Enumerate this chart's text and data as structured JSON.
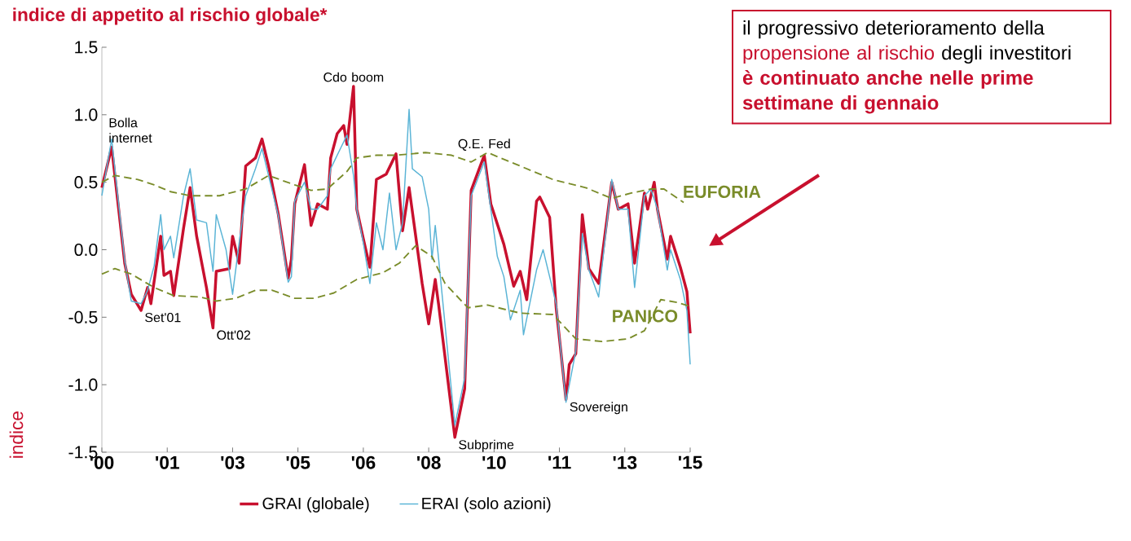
{
  "chart_data": {
    "type": "line",
    "title": "indice di appetito al rischio globale*",
    "ylabel": "indice",
    "legend": "bottom",
    "xlim": [
      "2000-01",
      "2015-01"
    ],
    "ylim": [
      -1.5,
      1.5
    ],
    "xticks": [
      {
        "value": "2000-01",
        "label": "'00"
      },
      {
        "value": "2001-09",
        "label": "'01"
      },
      {
        "value": "2003-05",
        "label": "'03"
      },
      {
        "value": "2005-01",
        "label": "'05"
      },
      {
        "value": "2006-09",
        "label": "'06"
      },
      {
        "value": "2008-05",
        "label": "'08"
      },
      {
        "value": "2010-01",
        "label": "'10"
      },
      {
        "value": "2011-09",
        "label": "'11"
      },
      {
        "value": "2013-05",
        "label": "'13"
      },
      {
        "value": "2015-01",
        "label": "'15"
      }
    ],
    "yticks": [
      -1.5,
      {
        "value": -1,
        "label": "-1.0"
      },
      -0.5,
      {
        "value": 0,
        "label": "0.0"
      },
      0.5,
      {
        "value": 1,
        "label": "1.0"
      },
      1.5
    ],
    "series": [
      {
        "name": "GRAI (globale)",
        "color": "#c8102e",
        "x": [
          "2000-01",
          "2000-04",
          "2000-08",
          "2000-10",
          "2001-01",
          "2001-03",
          "2001-04",
          "2001-07",
          "2001-08",
          "2001-10",
          "2001-11",
          "2002-02",
          "2002-04",
          "2002-06",
          "2002-09",
          "2002-11",
          "2002-12",
          "2003-04",
          "2003-05",
          "2003-07",
          "2003-09",
          "2003-12",
          "2004-02",
          "2004-04",
          "2004-07",
          "2004-10",
          "2004-11",
          "2004-12",
          "2005-03",
          "2005-05",
          "2005-07",
          "2005-10",
          "2005-11",
          "2006-01",
          "2006-03",
          "2006-04",
          "2006-06",
          "2006-07",
          "2006-09",
          "2006-11",
          "2007-01",
          "2007-04",
          "2007-07",
          "2007-09",
          "2007-11",
          "2008-03",
          "2008-05",
          "2008-07",
          "2008-08",
          "2009-01",
          "2009-04",
          "2009-06",
          "2009-10",
          "2009-12",
          "2010-04",
          "2010-07",
          "2010-09",
          "2010-11",
          "2011-02",
          "2011-03",
          "2011-06",
          "2011-08",
          "2011-11",
          "2011-12",
          "2012-02",
          "2012-04",
          "2012-06",
          "2012-09",
          "2013-01",
          "2013-03",
          "2013-06",
          "2013-08",
          "2013-11",
          "2013-12",
          "2014-02",
          "2014-03",
          "2014-06",
          "2014-07",
          "2014-10",
          "2014-12",
          "2015-01"
        ],
        "values": [
          0.46,
          0.76,
          -0.1,
          -0.33,
          -0.45,
          -0.28,
          -0.4,
          0.1,
          -0.19,
          -0.16,
          -0.34,
          0.16,
          0.46,
          0.1,
          -0.28,
          -0.58,
          -0.16,
          -0.14,
          0.1,
          -0.1,
          0.62,
          0.68,
          0.82,
          0.62,
          0.26,
          -0.21,
          -0.07,
          0.34,
          0.63,
          0.18,
          0.34,
          0.3,
          0.68,
          0.86,
          0.92,
          0.78,
          1.21,
          0.3,
          0.08,
          -0.13,
          0.52,
          0.56,
          0.71,
          0.14,
          0.46,
          -0.25,
          -0.55,
          -0.22,
          -0.4,
          -1.39,
          -1.03,
          0.44,
          0.7,
          0.34,
          0.04,
          -0.27,
          -0.16,
          -0.37,
          0.36,
          0.39,
          0.24,
          -0.43,
          -1.11,
          -0.85,
          -0.77,
          0.26,
          -0.14,
          -0.25,
          0.5,
          0.3,
          0.34,
          -0.1,
          0.42,
          0.3,
          0.5,
          0.3,
          -0.07,
          0.1,
          -0.13,
          -0.31,
          -0.62
        ]
      },
      {
        "name": "ERAI (solo azioni)",
        "color": "#5ab4d6",
        "x": [
          "2000-01",
          "2000-04",
          "2000-08",
          "2000-10",
          "2001-01",
          "2001-03",
          "2001-05",
          "2001-07",
          "2001-08",
          "2001-10",
          "2001-11",
          "2002-02",
          "2002-04",
          "2002-06",
          "2002-09",
          "2002-11",
          "2002-12",
          "2003-03",
          "2003-05",
          "2003-07",
          "2003-09",
          "2003-12",
          "2004-02",
          "2004-04",
          "2004-07",
          "2004-10",
          "2004-11",
          "2004-12",
          "2005-03",
          "2005-05",
          "2005-07",
          "2005-10",
          "2005-11",
          "2006-03",
          "2006-04",
          "2006-06",
          "2006-07",
          "2006-09",
          "2006-11",
          "2007-01",
          "2007-03",
          "2007-05",
          "2007-07",
          "2007-09",
          "2007-11",
          "2007-12",
          "2008-03",
          "2008-05",
          "2008-06",
          "2008-07",
          "2008-08",
          "2009-01",
          "2009-04",
          "2009-06",
          "2009-10",
          "2009-12",
          "2010-02",
          "2010-04",
          "2010-06",
          "2010-09",
          "2010-10",
          "2011-02",
          "2011-04",
          "2011-06",
          "2011-08",
          "2011-11",
          "2012-02",
          "2012-04",
          "2012-06",
          "2012-09",
          "2013-01",
          "2013-03",
          "2013-06",
          "2013-08",
          "2013-11",
          "2014-01",
          "2014-03",
          "2014-06",
          "2014-07",
          "2014-10",
          "2014-12",
          "2015-01"
        ],
        "values": [
          0.4,
          0.82,
          -0.08,
          -0.38,
          -0.4,
          -0.3,
          -0.12,
          0.26,
          0.0,
          0.1,
          -0.06,
          0.4,
          0.6,
          0.22,
          0.2,
          -0.16,
          0.26,
          0.0,
          -0.33,
          0.05,
          0.4,
          0.6,
          0.75,
          0.55,
          0.25,
          -0.24,
          -0.2,
          0.36,
          0.5,
          0.3,
          0.3,
          0.4,
          0.6,
          0.8,
          0.85,
          0.55,
          0.3,
          0.05,
          -0.25,
          0.2,
          0.0,
          0.42,
          0.0,
          0.2,
          1.04,
          0.6,
          0.54,
          0.3,
          -0.07,
          0.18,
          -0.06,
          -1.3,
          -0.95,
          0.4,
          0.65,
          0.3,
          -0.05,
          -0.2,
          -0.52,
          -0.3,
          -0.63,
          -0.15,
          0.0,
          -0.2,
          -0.4,
          -1.13,
          -0.75,
          0.12,
          -0.15,
          -0.35,
          0.52,
          0.3,
          0.3,
          -0.28,
          0.4,
          0.45,
          0.3,
          -0.15,
          0.0,
          -0.22,
          -0.45,
          -0.85
        ]
      },
      {
        "name": "EUFORIA",
        "color": "#7a8c2a",
        "line_style": "dashed",
        "x": [
          "2000-01",
          "2000-05",
          "2000-12",
          "2001-05",
          "2001-10",
          "2002-04",
          "2003-01",
          "2003-09",
          "2004-04",
          "2004-12",
          "2005-05",
          "2005-10",
          "2006-04",
          "2006-07",
          "2007-01",
          "2007-07",
          "2008-04",
          "2008-12",
          "2009-06",
          "2009-11",
          "2010-09",
          "2011-07",
          "2012-05",
          "2013-01",
          "2013-07",
          "2014-01",
          "2014-05",
          "2014-11"
        ],
        "values": [
          0.5,
          0.55,
          0.52,
          0.48,
          0.43,
          0.4,
          0.4,
          0.45,
          0.55,
          0.48,
          0.44,
          0.45,
          0.58,
          0.68,
          0.7,
          0.7,
          0.72,
          0.7,
          0.65,
          0.72,
          0.62,
          0.52,
          0.46,
          0.38,
          0.42,
          0.45,
          0.45,
          0.35
        ]
      },
      {
        "name": "PANICO",
        "color": "#7a8c2a",
        "line_style": "dashed",
        "x": [
          "2000-01",
          "2000-05",
          "2000-10",
          "2001-05",
          "2001-11",
          "2002-07",
          "2002-12",
          "2003-06",
          "2003-12",
          "2004-05",
          "2004-12",
          "2005-06",
          "2005-12",
          "2006-07",
          "2007-03",
          "2007-08",
          "2008-01",
          "2008-06",
          "2008-10",
          "2009-05",
          "2009-11",
          "2010-09",
          "2011-07",
          "2012-02",
          "2012-10",
          "2013-06",
          "2013-11",
          "2014-04",
          "2014-09",
          "2015-01"
        ],
        "values": [
          -0.18,
          -0.14,
          -0.18,
          -0.28,
          -0.34,
          -0.35,
          -0.38,
          -0.36,
          -0.3,
          -0.3,
          -0.36,
          -0.36,
          -0.32,
          -0.22,
          -0.17,
          -0.1,
          0.03,
          -0.05,
          -0.25,
          -0.43,
          -0.41,
          -0.47,
          -0.48,
          -0.66,
          -0.68,
          -0.66,
          -0.6,
          -0.37,
          -0.39,
          -0.42
        ]
      }
    ],
    "annotations": [
      {
        "text": "Bolla internet",
        "x": "2000-04",
        "y": 0.76
      },
      {
        "text": "Set'01",
        "x": "2001-01",
        "y": -0.45
      },
      {
        "text": "Ott'02",
        "x": "2002-11",
        "y": -0.58
      },
      {
        "text": "Cdo boom",
        "x": "2006-06",
        "y": 1.21
      },
      {
        "text": "Q.E. Fed",
        "x": "2009-10",
        "y": 0.7
      },
      {
        "text": "Subprime",
        "x": "2009-01",
        "y": -1.39
      },
      {
        "text": "Sovereign",
        "x": "2011-11",
        "y": -1.11
      },
      "il progressivo deterioramento della",
      "propensione al rischio",
      "degli investitori",
      "è continuato anche nelle prime settimane di gennaio"
    ]
  }
}
